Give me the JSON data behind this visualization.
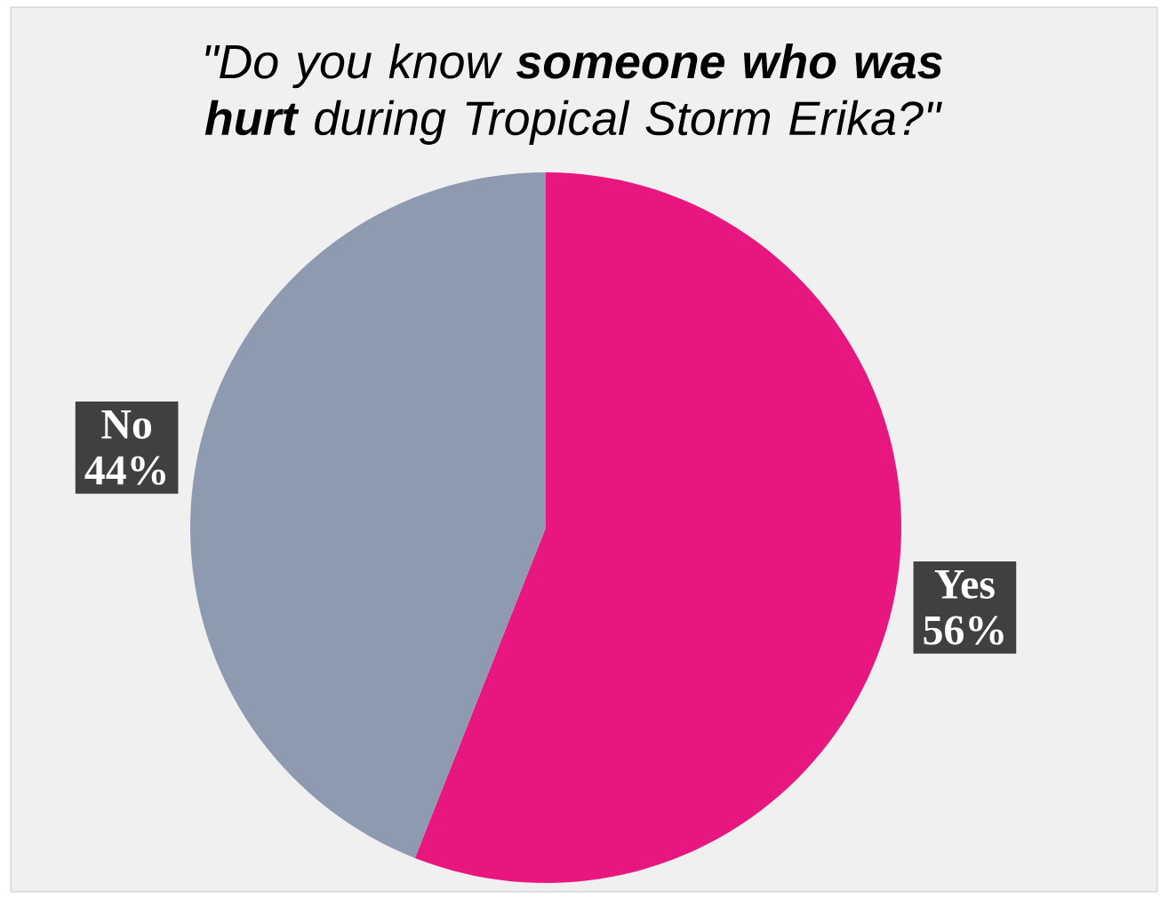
{
  "chart_data": {
    "type": "pie",
    "title": "\"Do you know **someone who was hurt** during Tropical Storm Erika?\"",
    "categories": [
      "Yes",
      "No"
    ],
    "values": [
      56,
      44
    ],
    "value_labels": [
      "56%",
      "44%"
    ],
    "colors": [
      "#e8177f",
      "#8e9ab0"
    ]
  }
}
